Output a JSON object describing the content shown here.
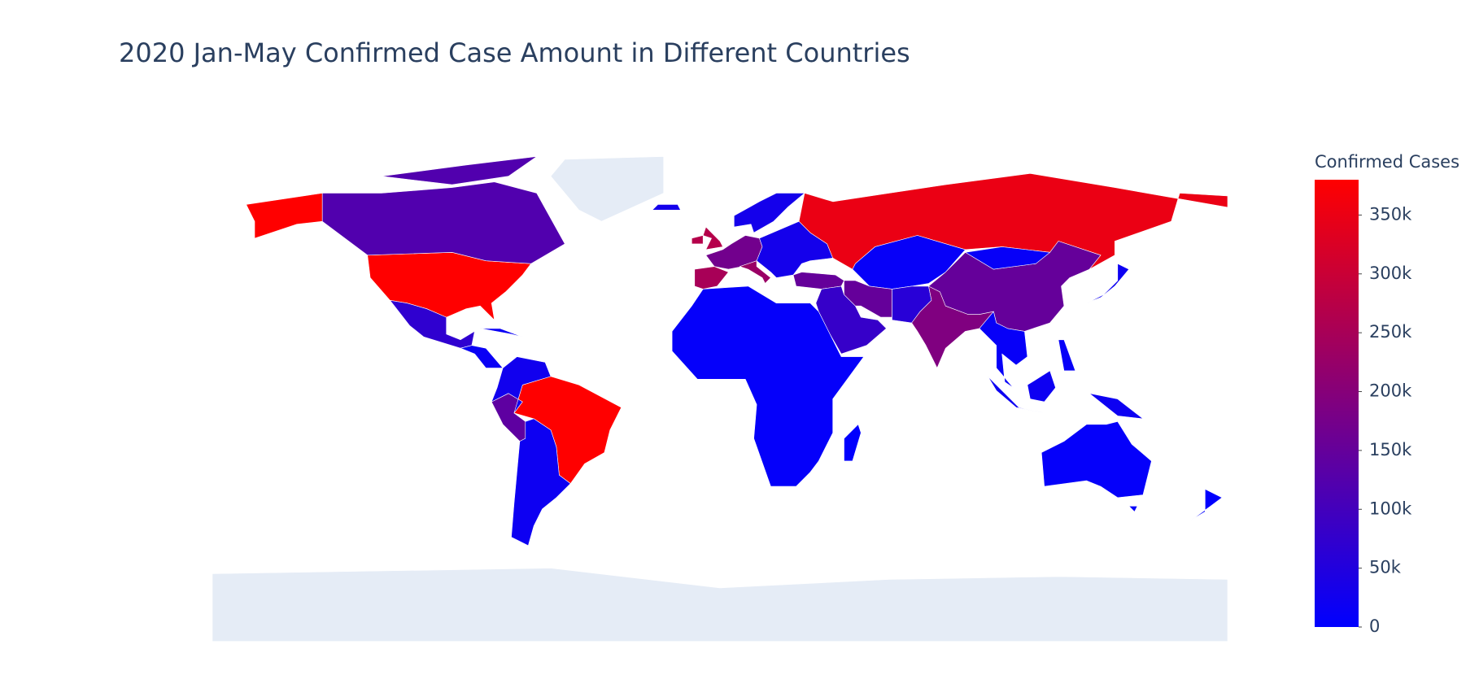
{
  "chart_data": {
    "type": "choropleth",
    "title": "2020 Jan-May Confirmed Case Amount in Different Countries",
    "colorbar_title": "Confirmed Cases",
    "colorscale": [
      "#0000ff",
      "#ff0000"
    ],
    "nodata_color": "#e5ecf6",
    "zlim": [
      0,
      380000
    ],
    "zticks": [
      0,
      {
        "value": 50000,
        "label": "50k"
      },
      {
        "value": 100000,
        "label": "100k"
      },
      {
        "value": 150000,
        "label": "150k"
      },
      {
        "value": 200000,
        "label": "200k"
      },
      {
        "value": 250000,
        "label": "250k"
      },
      {
        "value": 300000,
        "label": "300k"
      },
      {
        "value": 350000,
        "label": "350k"
      }
    ],
    "values": [
      380000,
      120000,
      70000,
      15000,
      null,
      380000,
      140000,
      25000,
      20000,
      170000,
      250000,
      230000,
      270000,
      30000,
      30000,
      350000,
      10000,
      150000,
      150000,
      80000,
      60000,
      190000,
      150000,
      10000,
      10000,
      20000,
      20000,
      8000,
      1000,
      8000,
      1500,
      null
    ]
  }
}
